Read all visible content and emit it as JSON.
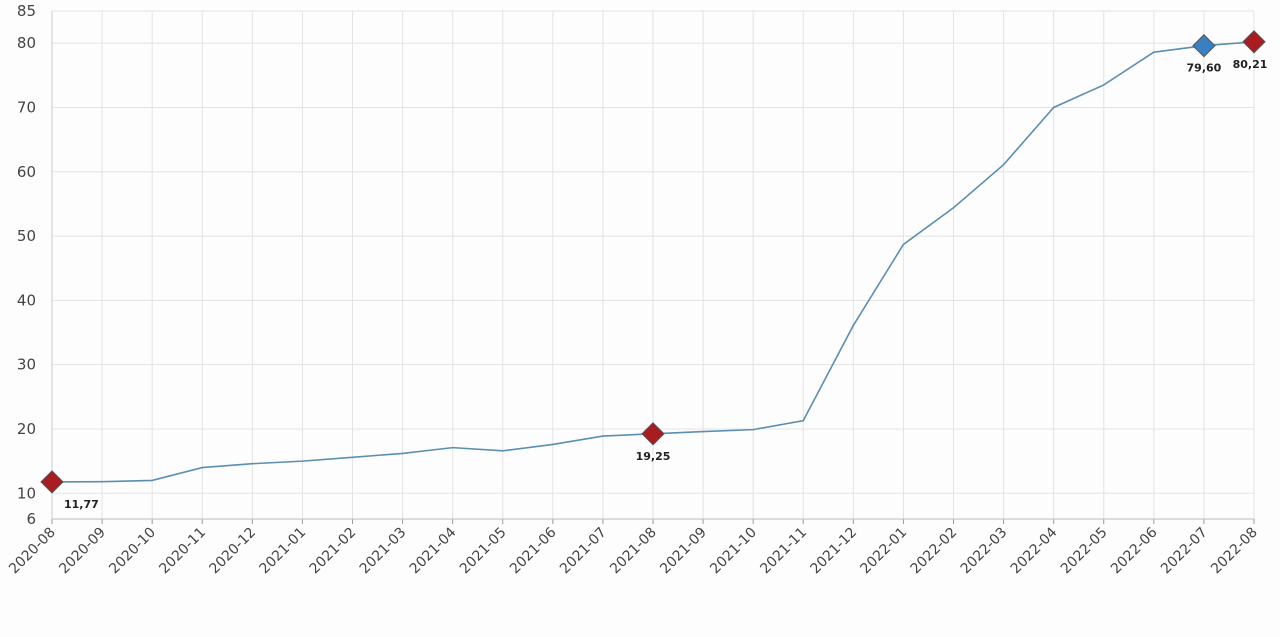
{
  "chart_data": {
    "type": "line",
    "title": "",
    "xlabel": "",
    "ylabel": "",
    "x": [
      "2020-08",
      "2020-09",
      "2020-10",
      "2020-11",
      "2020-12",
      "2021-01",
      "2021-02",
      "2021-03",
      "2021-04",
      "2021-05",
      "2021-06",
      "2021-07",
      "2021-08",
      "2021-09",
      "2021-10",
      "2021-11",
      "2021-12",
      "2022-01",
      "2022-02",
      "2022-03",
      "2022-04",
      "2022-05",
      "2022-06",
      "2022-07",
      "2022-08"
    ],
    "series": [
      {
        "values": [
          11.77,
          11.8,
          12.0,
          14.0,
          14.6,
          15.0,
          15.6,
          16.2,
          17.1,
          16.6,
          17.6,
          18.9,
          19.25,
          19.6,
          19.9,
          21.3,
          36.1,
          48.7,
          54.4,
          61.1,
          70.0,
          73.5,
          78.6,
          79.6,
          80.21
        ],
        "color": "#5b8fb0"
      }
    ],
    "markers": [
      {
        "index": 0,
        "label": "11,77",
        "color": "#a81c22"
      },
      {
        "index": 12,
        "label": "19,25",
        "color": "#a81c22"
      },
      {
        "index": 23,
        "label": "79,60",
        "color": "#3a7fbf"
      },
      {
        "index": 24,
        "label": "80,21",
        "color": "#a81c22"
      }
    ],
    "yticks": [
      6,
      10,
      20,
      30,
      40,
      50,
      60,
      70,
      80,
      85
    ],
    "ylim": [
      6,
      85
    ],
    "grid": true,
    "legend": "none"
  }
}
